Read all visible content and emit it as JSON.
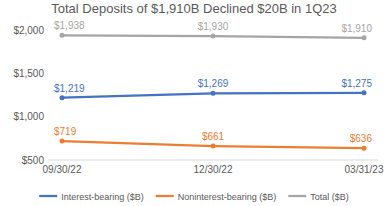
{
  "chart_data": {
    "type": "line",
    "title": "Total Deposits of $1,910B Declined $20B in 1Q23",
    "categories": [
      "09/30/22",
      "12/30/22",
      "03/31/23"
    ],
    "series": [
      {
        "name": "Interest-bearing ($B)",
        "color": "#4472c4",
        "marker": "circle",
        "values": [
          1219,
          1269,
          1275
        ],
        "value_labels": [
          "$1,219",
          "$1,269",
          "$1,275"
        ]
      },
      {
        "name": "Noninterest-bearing ($B)",
        "color": "#ed7d31",
        "marker": "circle",
        "values": [
          719,
          661,
          636
        ],
        "value_labels": [
          "$719",
          "$661",
          "$636"
        ]
      },
      {
        "name": "Total ($B)",
        "color": "#a5a5a5",
        "marker": "circle",
        "values": [
          1938,
          1930,
          1910
        ],
        "value_labels": [
          "$1,938",
          "$1,930",
          "$1,910"
        ]
      }
    ],
    "ylim": [
      500,
      2000
    ],
    "yticks": [
      {
        "value": 500,
        "label": "$500"
      },
      {
        "value": 1000,
        "label": "$1,000"
      },
      {
        "value": 1500,
        "label": "$1,500"
      },
      {
        "value": 2000,
        "label": "$2,000"
      }
    ],
    "grid": false,
    "data_labels": true,
    "legend": "bottom"
  }
}
